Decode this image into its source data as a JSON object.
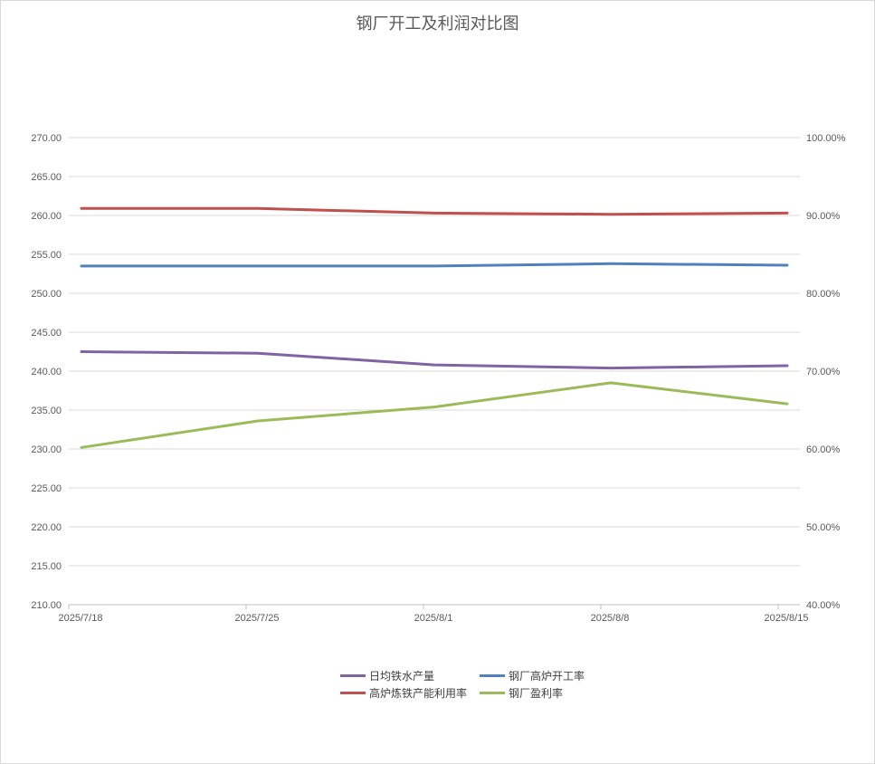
{
  "chart_data": {
    "type": "line",
    "title": "钢厂开工及利润对比图",
    "categories": [
      "2025/7/18",
      "2025/7/25",
      "2025/8/1",
      "2025/8/8",
      "2025/8/15"
    ],
    "y_left": {
      "ylim": [
        210,
        270
      ],
      "ticks": [
        "270.00",
        "265.00",
        "260.00",
        "255.00",
        "250.00",
        "245.00",
        "240.00",
        "235.00",
        "230.00",
        "225.00",
        "220.00",
        "215.00",
        "210.00"
      ]
    },
    "y_right": {
      "ylim": [
        40,
        100
      ],
      "ticks": [
        "100.00%",
        "90.00%",
        "80.00%",
        "70.00%",
        "60.00%",
        "50.00%",
        "40.00%"
      ]
    },
    "grid": true,
    "legend_position": "bottom",
    "series": [
      {
        "name": "日均铁水产量",
        "axis": "left",
        "color": "#8064a2",
        "values": [
          242.5,
          242.3,
          240.8,
          240.4,
          240.7
        ]
      },
      {
        "name": "钢厂高炉开工率",
        "axis": "right",
        "color": "#4f81bd",
        "values": [
          83.5,
          83.5,
          83.5,
          83.8,
          83.6
        ]
      },
      {
        "name": "高炉炼铁产能利用率",
        "axis": "right",
        "color": "#c0504d",
        "values": [
          90.9,
          90.9,
          90.3,
          90.15,
          90.3
        ]
      },
      {
        "name": "钢厂盈利率",
        "axis": "right",
        "color": "#9bbb59",
        "values": [
          60.2,
          63.6,
          65.4,
          68.5,
          65.8
        ]
      }
    ]
  }
}
